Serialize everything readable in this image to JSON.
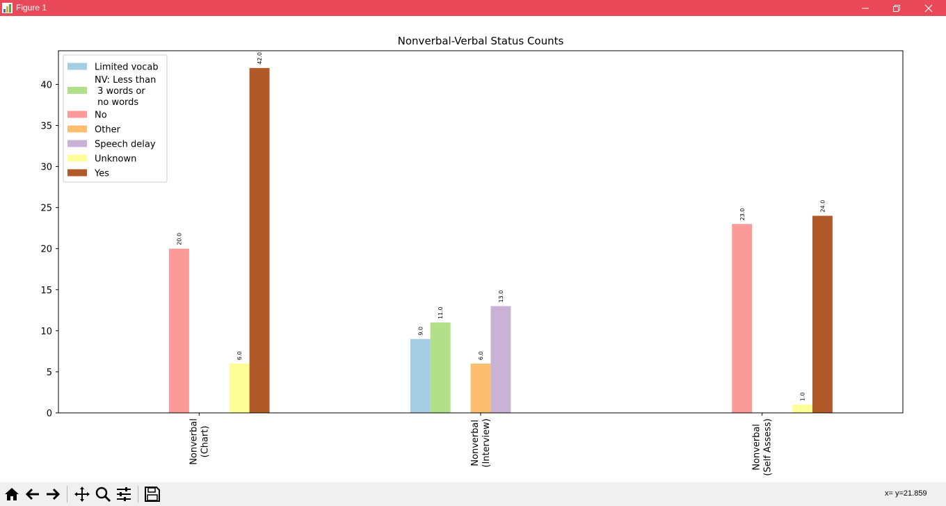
{
  "window": {
    "title": "Figure 1"
  },
  "toolbar": {
    "buttons": [
      "home-icon",
      "back-icon",
      "forward-icon",
      "pan-icon",
      "zoom-icon",
      "configure-icon",
      "save-icon"
    ],
    "coords": "x= y=21.859"
  },
  "chart_data": {
    "type": "bar",
    "title": "Nonverbal-Verbal Status Counts",
    "xlabel": "",
    "ylabel": "",
    "categories": [
      "Nonverbal\n(Chart)",
      "Nonverbal\n(Interview)",
      "Nonverbal\n(Self Assess)"
    ],
    "ylim": [
      0,
      44.1
    ],
    "yticks": [
      0,
      5,
      10,
      15,
      20,
      25,
      30,
      35,
      40
    ],
    "legend_position": "top-left",
    "grid": false,
    "series": [
      {
        "name": "Limited vocab",
        "color": "#a6cee3",
        "values": [
          null,
          9,
          null
        ],
        "labels": [
          "",
          "9.0",
          ""
        ]
      },
      {
        "name": "NV: Less than\n 3 words or\n no words",
        "color": "#b2df8a",
        "values": [
          null,
          11,
          null
        ],
        "labels": [
          "",
          "11.0",
          ""
        ]
      },
      {
        "name": "No",
        "color": "#fb9a99",
        "values": [
          20,
          null,
          23
        ],
        "labels": [
          "20.0",
          "",
          "23.0"
        ]
      },
      {
        "name": "Other",
        "color": "#fdbf6f",
        "values": [
          null,
          6,
          null
        ],
        "labels": [
          "",
          "6.0",
          ""
        ]
      },
      {
        "name": "Speech delay",
        "color": "#cab2d6",
        "values": [
          null,
          13,
          null
        ],
        "labels": [
          "",
          "13.0",
          ""
        ]
      },
      {
        "name": "Unknown",
        "color": "#ffff99",
        "values": [
          6,
          null,
          1
        ],
        "labels": [
          "6.0",
          "",
          "1.0"
        ]
      },
      {
        "name": "Yes",
        "color": "#b15928",
        "values": [
          42,
          null,
          24
        ],
        "labels": [
          "42.0",
          "",
          "24.0"
        ]
      }
    ]
  }
}
